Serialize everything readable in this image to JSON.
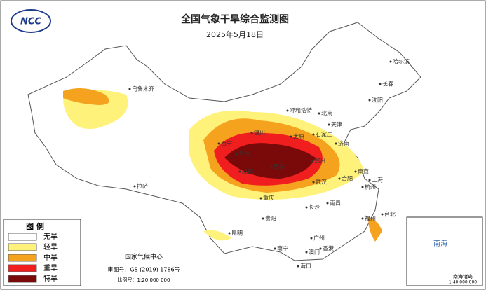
{
  "logo": "NCC",
  "title": "全国气象干旱综合监测图",
  "date": "2025年5月18日",
  "legend": {
    "title": "图 例",
    "items": [
      {
        "label": "无旱",
        "color": "#ffffff"
      },
      {
        "label": "轻旱",
        "color": "#fff27a"
      },
      {
        "label": "中旱",
        "color": "#f5a21e"
      },
      {
        "label": "重旱",
        "color": "#f01e1e"
      },
      {
        "label": "特旱",
        "color": "#7a0a0a"
      }
    ]
  },
  "footer": {
    "agency": "国家气候中心",
    "review": "审图号：GS (2019) 1786号",
    "scale": "比例尺：1:20 000 000"
  },
  "inset": {
    "sea": "南海",
    "islands": "南海诸岛",
    "scale": "1:40 000 000"
  },
  "cities": [
    "哈尔滨",
    "长春",
    "沈阳",
    "乌鲁木齐",
    "呼和浩特",
    "北京",
    "天津",
    "石家庄",
    "银川",
    "太原",
    "济南",
    "西宁",
    "兰州",
    "郑州",
    "西安",
    "合肥",
    "南京",
    "上海",
    "武汉",
    "杭州",
    "成都",
    "拉萨",
    "重庆",
    "长沙",
    "南昌",
    "贵阳",
    "福州",
    "台北",
    "昆明",
    "广州",
    "南宁",
    "香港",
    "澳门",
    "海口"
  ]
}
